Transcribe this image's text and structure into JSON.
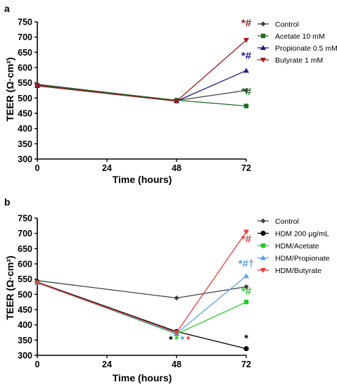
{
  "chart_data": [
    {
      "panel": "a",
      "type": "line",
      "title": "",
      "xlabel": "Time (hours)",
      "ylabel": "TEER (Ω·cm²)",
      "x": [
        0,
        24,
        48,
        72
      ],
      "xlim": [
        0,
        72
      ],
      "ylim": [
        300,
        750
      ],
      "xticks": [
        "0",
        "24",
        "48",
        "72"
      ],
      "yticks": [
        "300",
        "350",
        "400",
        "450",
        "500",
        "550",
        "600",
        "650",
        "700",
        "750"
      ],
      "grid": false,
      "legend_position": "right",
      "series": [
        {
          "name": "Control",
          "marker": "diamond",
          "color": "#404040",
          "points": [
            {
              "x": 0,
              "y": 545
            },
            {
              "x": 48,
              "y": 492
            },
            {
              "x": 72,
              "y": 525
            }
          ]
        },
        {
          "name": "Acetate 10 mM",
          "marker": "square",
          "color": "#1e6b1e",
          "points": [
            {
              "x": 0,
              "y": 542
            },
            {
              "x": 48,
              "y": 493
            },
            {
              "x": 72,
              "y": 474
            }
          ]
        },
        {
          "name": "Propionate 0.5 mM",
          "marker": "triangle-up",
          "color": "#1a1a8c",
          "points": [
            {
              "x": 0,
              "y": 540
            },
            {
              "x": 48,
              "y": 490
            },
            {
              "x": 72,
              "y": 590
            }
          ]
        },
        {
          "name": "Butyrate 1 mM",
          "marker": "triangle-down",
          "color": "#a01818",
          "points": [
            {
              "x": 0,
              "y": 540
            },
            {
              "x": 48,
              "y": 490
            },
            {
              "x": 72,
              "y": 690
            }
          ]
        }
      ],
      "annotations": [
        {
          "text": "*#",
          "x": 72,
          "y": 735,
          "color": "#a01818"
        },
        {
          "text": "*#",
          "x": 72,
          "y": 628,
          "color": "#1a1a8c"
        },
        {
          "text": "*#",
          "x": 72,
          "y": 510,
          "color": "#1e6b1e"
        }
      ]
    },
    {
      "panel": "b",
      "type": "line",
      "title": "",
      "xlabel": "Time (hours)",
      "ylabel": "TEER (Ω·cm²)",
      "x": [
        0,
        24,
        48,
        72
      ],
      "xlim": [
        0,
        72
      ],
      "ylim": [
        300,
        750
      ],
      "xticks": [
        "0",
        "24",
        "48",
        "72"
      ],
      "yticks": [
        "300",
        "350",
        "400",
        "450",
        "500",
        "550",
        "600",
        "650",
        "700",
        "750"
      ],
      "grid": false,
      "legend_position": "right",
      "series": [
        {
          "name": "Control",
          "marker": "diamond",
          "color": "#404040",
          "points": [
            {
              "x": 0,
              "y": 545
            },
            {
              "x": 48,
              "y": 488
            },
            {
              "x": 72,
              "y": 525
            }
          ]
        },
        {
          "name": "HDM 200 μg/mL",
          "marker": "circle",
          "color": "#000000",
          "points": [
            {
              "x": 0,
              "y": 540
            },
            {
              "x": 48,
              "y": 378
            },
            {
              "x": 72,
              "y": 322
            }
          ]
        },
        {
          "name": "HDM/Acetate",
          "marker": "square",
          "color": "#22cc22",
          "points": [
            {
              "x": 0,
              "y": 538
            },
            {
              "x": 48,
              "y": 370
            },
            {
              "x": 72,
              "y": 475
            }
          ]
        },
        {
          "name": "HDM/Propionate",
          "marker": "triangle-up",
          "color": "#5aa0e6",
          "points": [
            {
              "x": 0,
              "y": 538
            },
            {
              "x": 48,
              "y": 372
            },
            {
              "x": 72,
              "y": 560
            }
          ]
        },
        {
          "name": "HDM/Butyrate",
          "marker": "triangle-down",
          "color": "#ee3b3b",
          "points": [
            {
              "x": 0,
              "y": 538
            },
            {
              "x": 48,
              "y": 375
            },
            {
              "x": 72,
              "y": 705
            }
          ]
        }
      ],
      "annotations": [
        {
          "text": "*#",
          "x": 72,
          "y": 670,
          "color": "#ee3b3b"
        },
        {
          "text": "*#†",
          "x": 72,
          "y": 590,
          "color": "#5aa0e6"
        },
        {
          "text": "*#",
          "x": 72,
          "y": 500,
          "color": "#22cc22"
        },
        {
          "text": "*",
          "x": 72,
          "y": 345,
          "color": "#000000"
        },
        {
          "text": "*",
          "x": 46,
          "y": 340,
          "color": "#000000"
        },
        {
          "text": "*",
          "x": 48,
          "y": 340,
          "color": "#22cc22"
        },
        {
          "text": "*",
          "x": 50,
          "y": 340,
          "color": "#5aa0e6"
        },
        {
          "text": "*",
          "x": 52,
          "y": 340,
          "color": "#ee3b3b"
        }
      ]
    }
  ]
}
